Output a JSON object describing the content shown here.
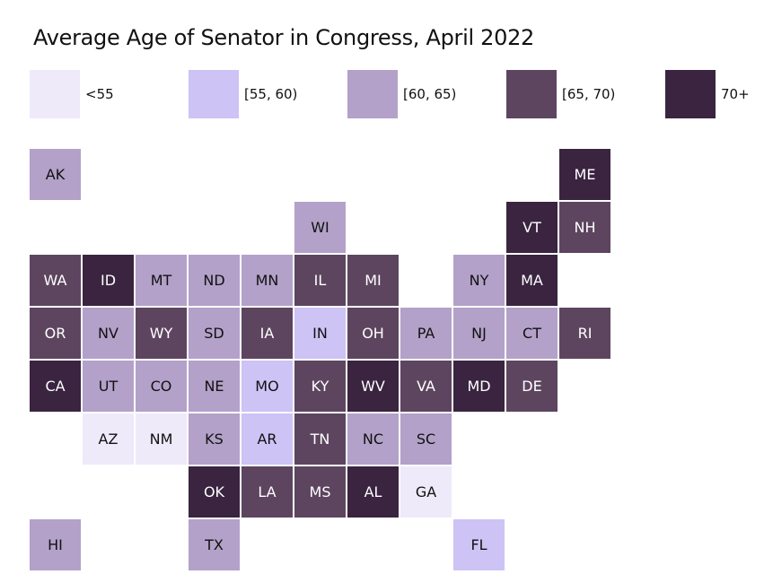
{
  "title": "Average Age of Senator in Congress, April 2022",
  "chart_data": {
    "type": "tile-map",
    "title": "Average Age of Senator in Congress, April 2022",
    "legend": [
      {
        "label": "<55",
        "color": "#eeeafa"
      },
      {
        "label": "[55, 60)",
        "color": "#cdc3f5"
      },
      {
        "label": "[60, 65)",
        "color": "#b3a1c9"
      },
      {
        "label": "[65, 70)",
        "color": "#5d4560"
      },
      {
        "label": "70+",
        "color": "#3a2440"
      }
    ],
    "legend_placement": "top",
    "states": [
      {
        "abbr": "AK",
        "col": 0,
        "row": 0,
        "bin": 2
      },
      {
        "abbr": "ME",
        "col": 10,
        "row": 0,
        "bin": 4
      },
      {
        "abbr": "WI",
        "col": 5,
        "row": 1,
        "bin": 2
      },
      {
        "abbr": "VT",
        "col": 9,
        "row": 1,
        "bin": 4
      },
      {
        "abbr": "NH",
        "col": 10,
        "row": 1,
        "bin": 3
      },
      {
        "abbr": "WA",
        "col": 0,
        "row": 2,
        "bin": 3
      },
      {
        "abbr": "ID",
        "col": 1,
        "row": 2,
        "bin": 4
      },
      {
        "abbr": "MT",
        "col": 2,
        "row": 2,
        "bin": 2
      },
      {
        "abbr": "ND",
        "col": 3,
        "row": 2,
        "bin": 2
      },
      {
        "abbr": "MN",
        "col": 4,
        "row": 2,
        "bin": 2
      },
      {
        "abbr": "IL",
        "col": 5,
        "row": 2,
        "bin": 3
      },
      {
        "abbr": "MI",
        "col": 6,
        "row": 2,
        "bin": 3
      },
      {
        "abbr": "NY",
        "col": 8,
        "row": 2,
        "bin": 2
      },
      {
        "abbr": "MA",
        "col": 9,
        "row": 2,
        "bin": 4
      },
      {
        "abbr": "OR",
        "col": 0,
        "row": 3,
        "bin": 3
      },
      {
        "abbr": "NV",
        "col": 1,
        "row": 3,
        "bin": 2
      },
      {
        "abbr": "WY",
        "col": 2,
        "row": 3,
        "bin": 3
      },
      {
        "abbr": "SD",
        "col": 3,
        "row": 3,
        "bin": 2
      },
      {
        "abbr": "IA",
        "col": 4,
        "row": 3,
        "bin": 3
      },
      {
        "abbr": "IN",
        "col": 5,
        "row": 3,
        "bin": 1
      },
      {
        "abbr": "OH",
        "col": 6,
        "row": 3,
        "bin": 3
      },
      {
        "abbr": "PA",
        "col": 7,
        "row": 3,
        "bin": 2
      },
      {
        "abbr": "NJ",
        "col": 8,
        "row": 3,
        "bin": 2
      },
      {
        "abbr": "CT",
        "col": 9,
        "row": 3,
        "bin": 2
      },
      {
        "abbr": "RI",
        "col": 10,
        "row": 3,
        "bin": 3
      },
      {
        "abbr": "CA",
        "col": 0,
        "row": 4,
        "bin": 4
      },
      {
        "abbr": "UT",
        "col": 1,
        "row": 4,
        "bin": 2
      },
      {
        "abbr": "CO",
        "col": 2,
        "row": 4,
        "bin": 2
      },
      {
        "abbr": "NE",
        "col": 3,
        "row": 4,
        "bin": 2
      },
      {
        "abbr": "MO",
        "col": 4,
        "row": 4,
        "bin": 1
      },
      {
        "abbr": "KY",
        "col": 5,
        "row": 4,
        "bin": 3
      },
      {
        "abbr": "WV",
        "col": 6,
        "row": 4,
        "bin": 4
      },
      {
        "abbr": "VA",
        "col": 7,
        "row": 4,
        "bin": 3
      },
      {
        "abbr": "MD",
        "col": 8,
        "row": 4,
        "bin": 4
      },
      {
        "abbr": "DE",
        "col": 9,
        "row": 4,
        "bin": 3
      },
      {
        "abbr": "AZ",
        "col": 1,
        "row": 5,
        "bin": 0
      },
      {
        "abbr": "NM",
        "col": 2,
        "row": 5,
        "bin": 0
      },
      {
        "abbr": "KS",
        "col": 3,
        "row": 5,
        "bin": 2
      },
      {
        "abbr": "AR",
        "col": 4,
        "row": 5,
        "bin": 1
      },
      {
        "abbr": "TN",
        "col": 5,
        "row": 5,
        "bin": 3
      },
      {
        "abbr": "NC",
        "col": 6,
        "row": 5,
        "bin": 2
      },
      {
        "abbr": "SC",
        "col": 7,
        "row": 5,
        "bin": 2
      },
      {
        "abbr": "OK",
        "col": 3,
        "row": 6,
        "bin": 4
      },
      {
        "abbr": "LA",
        "col": 4,
        "row": 6,
        "bin": 3
      },
      {
        "abbr": "MS",
        "col": 5,
        "row": 6,
        "bin": 3
      },
      {
        "abbr": "AL",
        "col": 6,
        "row": 6,
        "bin": 4
      },
      {
        "abbr": "GA",
        "col": 7,
        "row": 6,
        "bin": 0
      },
      {
        "abbr": "HI",
        "col": 0,
        "row": 7,
        "bin": 2
      },
      {
        "abbr": "TX",
        "col": 3,
        "row": 7,
        "bin": 2
      },
      {
        "abbr": "FL",
        "col": 8,
        "row": 7,
        "bin": 1
      }
    ]
  }
}
